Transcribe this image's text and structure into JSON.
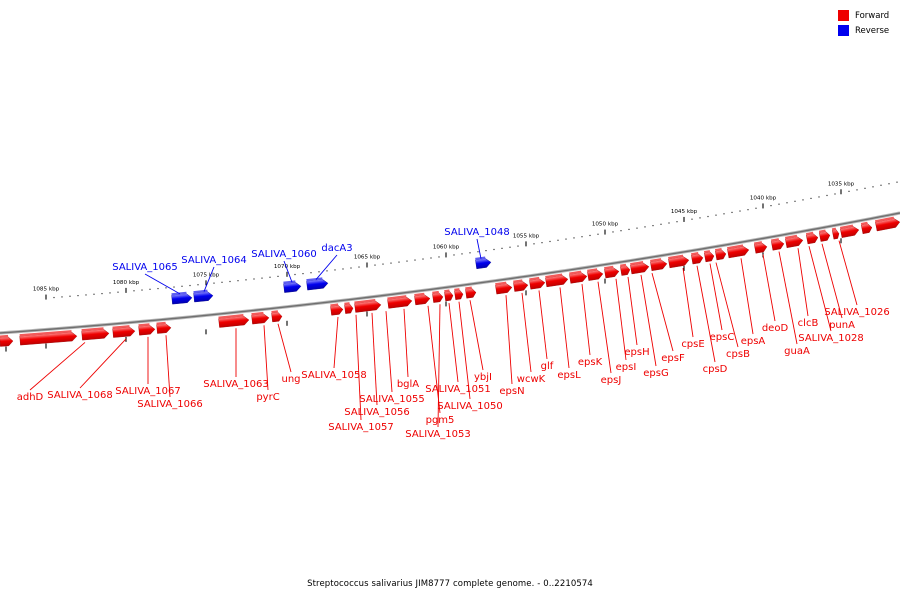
{
  "legend": [
    {
      "label": "Forward",
      "color": "#ee0000"
    },
    {
      "label": "Reverse",
      "color": "#0000ee"
    }
  ],
  "caption": "Streptococcus salivarius JIM8777 complete genome. - 0..2210574",
  "colors": {
    "forward": "#ee0000",
    "reverse": "#0000ee",
    "backbone": "#888888"
  },
  "ticks": [
    "1085 kbp",
    "1080 kbp",
    "1075 kbp",
    "1070 kbp",
    "1065 kbp",
    "1060 kbp",
    "1055 kbp",
    "1050 kbp",
    "1045 kbp",
    "1040 kbp",
    "1035 kbp"
  ],
  "genes_forward": [
    "adhD",
    "SALIVA_1068",
    "SALIVA_1067",
    "SALIVA_1066",
    "SALIVA_1063",
    "pyrC",
    "ung",
    "SALIVA_1058",
    "SALIVA_1057",
    "SALIVA_1056",
    "SALIVA_1055",
    "bglA",
    "pgm5",
    "SALIVA_1053",
    "SALIVA_1051",
    "SALIVA_1050",
    "ybjI",
    "epsN",
    "wcwK",
    "glf",
    "epsL",
    "epsK",
    "epsJ",
    "epsI",
    "epsH",
    "epsG",
    "epsF",
    "cpsE",
    "cpsD",
    "epsC",
    "cpsB",
    "epsA",
    "deoD",
    "guaA",
    "clcB",
    "SALIVA_1028",
    "punA",
    "SALIVA_1026"
  ],
  "genes_reverse": [
    "SALIVA_1065",
    "SALIVA_1064",
    "SALIVA_1060",
    "dacA3",
    "SALIVA_1048"
  ]
}
